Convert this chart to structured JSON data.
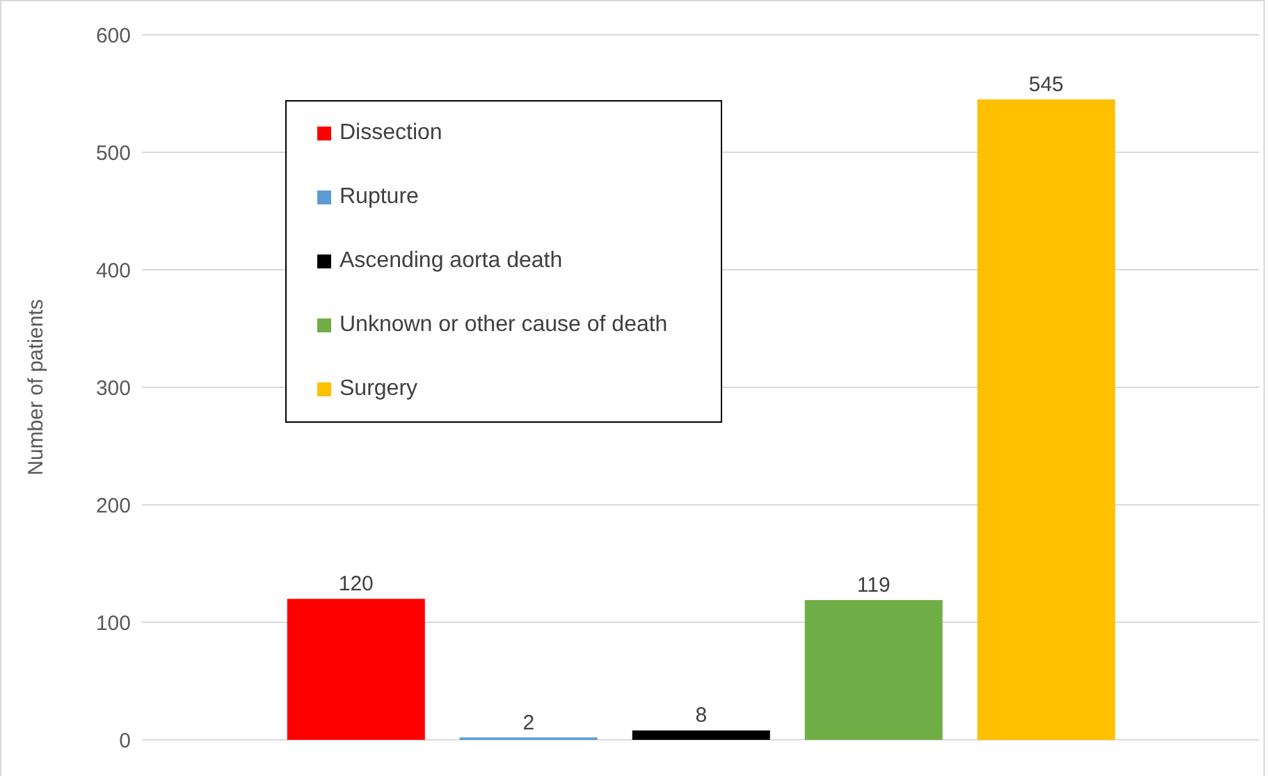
{
  "chart_data": {
    "type": "bar",
    "categories": [
      null
    ],
    "series": [
      {
        "name": "Dissection",
        "color": "#ff0000",
        "values": [
          120
        ]
      },
      {
        "name": "Rupture",
        "color": "#5b9bd5",
        "values": [
          2
        ]
      },
      {
        "name": "Ascending aorta death",
        "color": "#000000",
        "values": [
          8
        ]
      },
      {
        "name": "Unknown or other cause of death",
        "color": "#70ad47",
        "values": [
          119
        ]
      },
      {
        "name": "Surgery",
        "color": "#ffc000",
        "values": [
          545
        ]
      }
    ],
    "ylabel": "Number of patients",
    "ylim": [
      0,
      600
    ],
    "yticks": [
      0,
      100,
      200,
      300,
      400,
      500,
      600
    ],
    "grid": "y",
    "legend": "top left",
    "data_labels": true,
    "tick_labels": "y"
  }
}
